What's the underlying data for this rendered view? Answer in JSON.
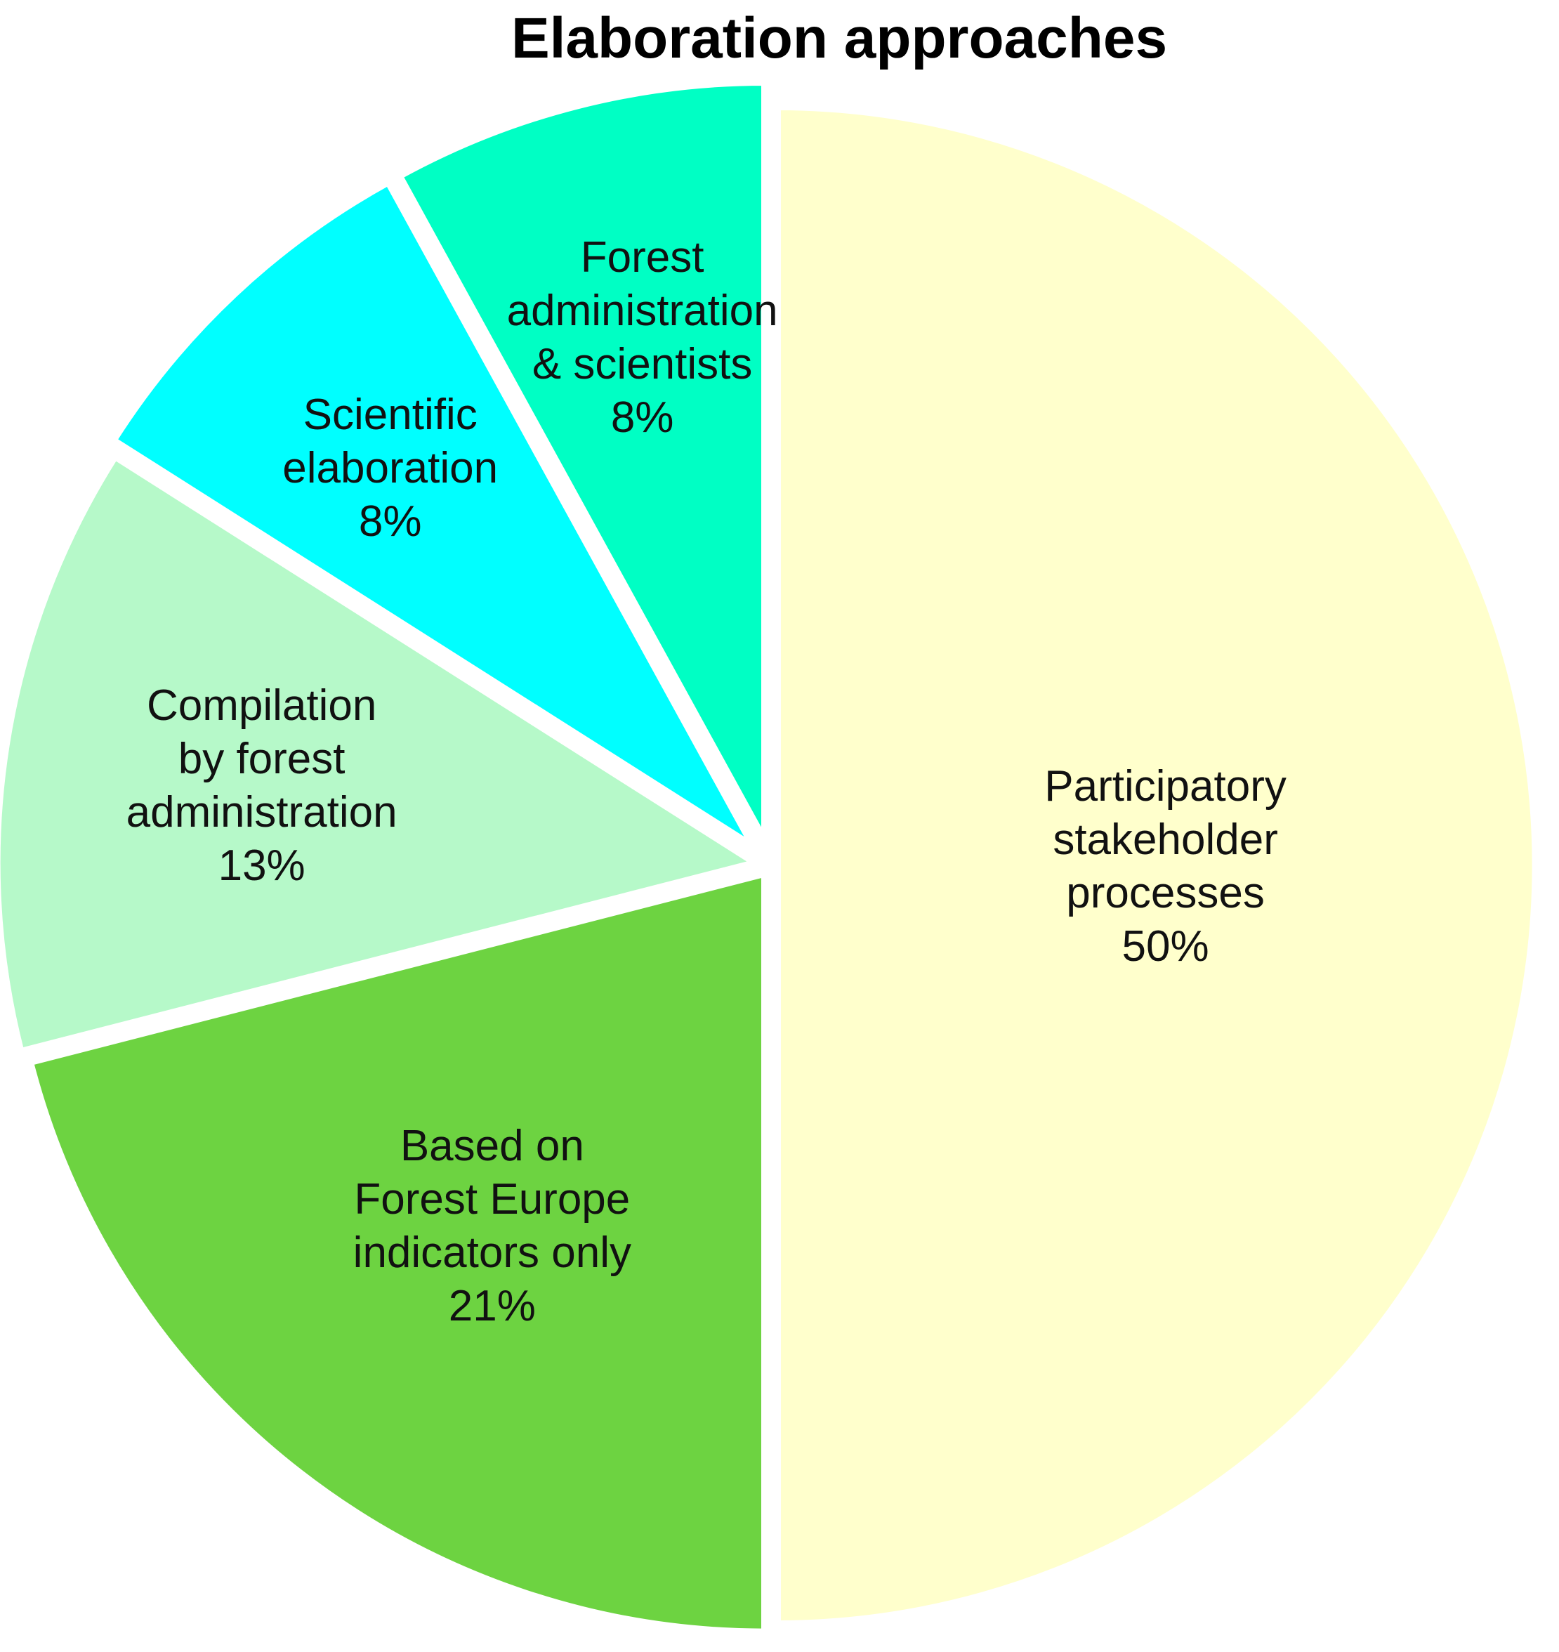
{
  "chart_data": {
    "type": "pie",
    "title": "Elaboration approaches",
    "start_angle_deg": 0,
    "direction": "clockwise",
    "slices": [
      {
        "label_lines": [
          "Participatory",
          "stakeholder",
          "processes"
        ],
        "value_label": "50%",
        "value": 50,
        "color": "#FFFFCC"
      },
      {
        "label_lines": [
          "Based on",
          "Forest Europe",
          "indicators only"
        ],
        "value_label": "21%",
        "value": 21,
        "color": "#6DD341"
      },
      {
        "label_lines": [
          "Compilation",
          "by forest",
          "administration"
        ],
        "value_label": "13%",
        "value": 13,
        "color": "#B6F9C9"
      },
      {
        "label_lines": [
          "Scientific",
          "elaboration"
        ],
        "value_label": "8%",
        "value": 8,
        "color": "#00FFFF"
      },
      {
        "label_lines": [
          "Forest",
          "administration",
          "& scientists"
        ],
        "value_label": "8%",
        "value": 8,
        "color": "#00FFC4"
      }
    ]
  }
}
